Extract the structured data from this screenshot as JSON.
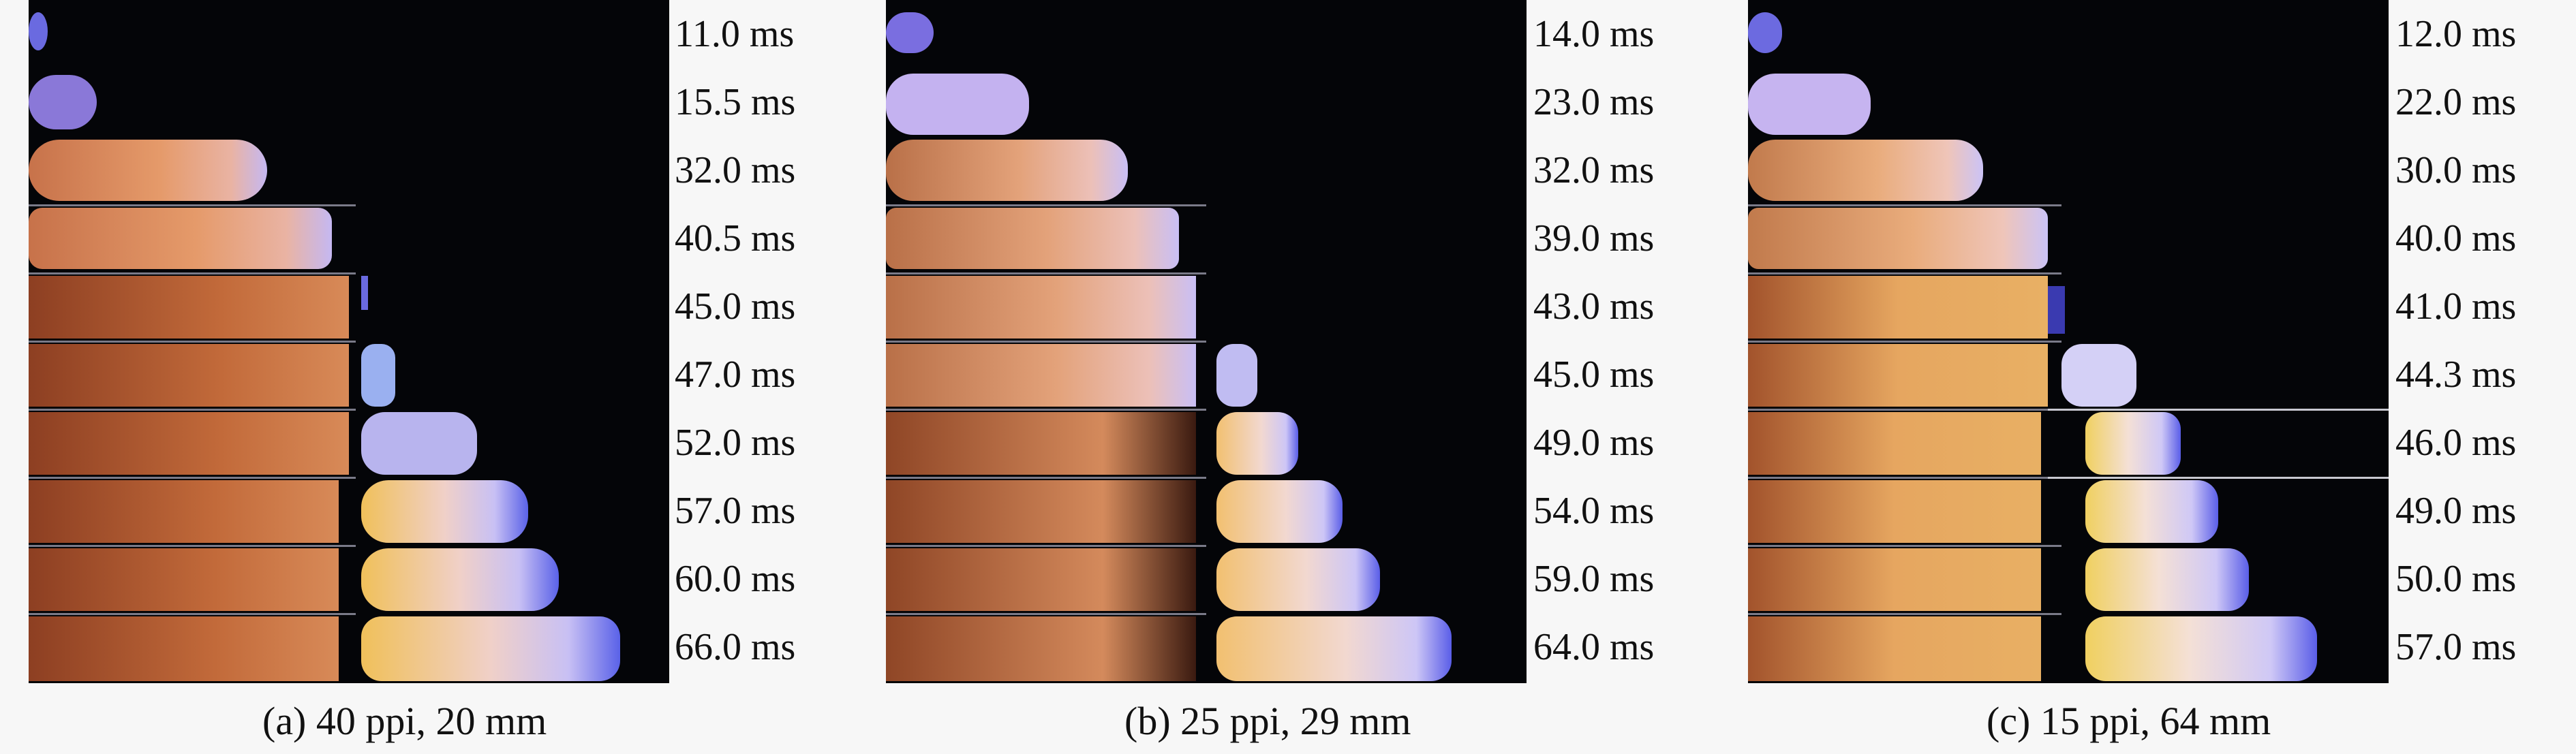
{
  "panels": [
    {
      "caption": "(a) 40 ppi, 20 mm",
      "times": [
        "11.0 ms",
        "15.5 ms",
        "32.0 ms",
        "40.5 ms",
        "45.0 ms",
        "47.0 ms",
        "52.0 ms",
        "57.0 ms",
        "60.0 ms",
        "66.0 ms"
      ]
    },
    {
      "caption": "(b) 25 ppi, 29 mm",
      "times": [
        "14.0 ms",
        "23.0 ms",
        "32.0 ms",
        "39.0 ms",
        "43.0 ms",
        "45.0 ms",
        "49.0 ms",
        "54.0 ms",
        "59.0 ms",
        "64.0 ms"
      ]
    },
    {
      "caption": "(c) 15 ppi, 64 mm",
      "times": [
        "12.0 ms",
        "22.0 ms",
        "30.0 ms",
        "40.0 ms",
        "41.0 ms",
        "44.3 ms",
        "46.0 ms",
        "49.0 ms",
        "50.0 ms",
        "57.0 ms"
      ]
    }
  ],
  "colors": {
    "background": "#040508",
    "flame_core": "#e8a070",
    "flame_edge": "#b8a8f0",
    "flame_hot": "#f0b040",
    "flame_front": "#4a50e0"
  }
}
